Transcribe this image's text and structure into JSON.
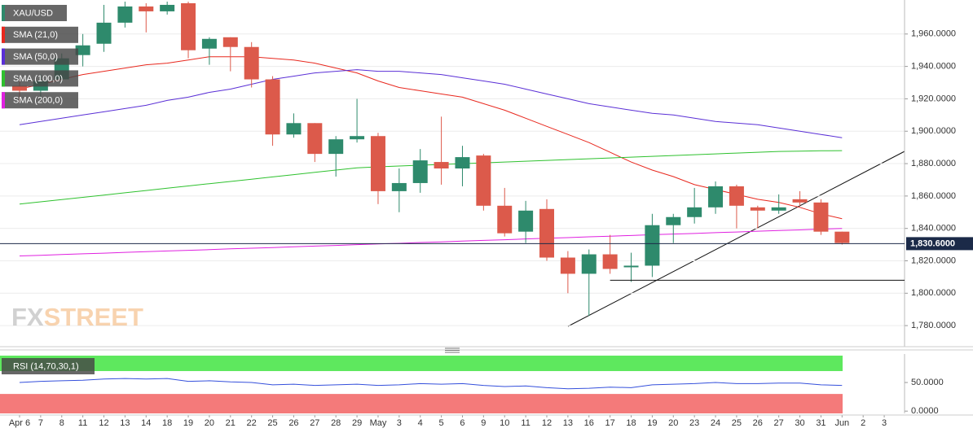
{
  "chart_data": [
    {
      "type": "candlestick",
      "categories": [
        "Apr 6",
        "7",
        "8",
        "11",
        "12",
        "13",
        "14",
        "18",
        "19",
        "20",
        "21",
        "22",
        "25",
        "26",
        "27",
        "28",
        "29",
        "May",
        "3",
        "4",
        "5",
        "6",
        "9",
        "10",
        "11",
        "12",
        "13",
        "16",
        "17",
        "18",
        "19",
        "20",
        "23",
        "24",
        "25",
        "26",
        "27",
        "30",
        "31",
        "Jun",
        "2",
        "3"
      ],
      "candles": {
        "name": "XAU/USD",
        "up_color": "#2e8a6c",
        "down_color": "#dc5a4b",
        "open": [
          1928,
          1925,
          1932,
          1947,
          1954,
          1967,
          1977,
          1974,
          1979,
          1951,
          1958,
          1952,
          1932,
          1898,
          1905,
          1886,
          1895,
          1897,
          1863,
          1868,
          1881,
          1877,
          1885,
          1854,
          1838,
          1852,
          1822,
          1812,
          1824,
          1816,
          1817,
          1842,
          1847,
          1853,
          1866,
          1853,
          1851,
          1858,
          1856,
          1838,
          null,
          null
        ],
        "high": [
          1932,
          1935,
          1948,
          1960,
          1978,
          1980,
          1979,
          1980,
          1980,
          1958,
          1958,
          1955,
          1934,
          1911,
          1905,
          1897,
          1920,
          1899,
          1877,
          1889,
          1909,
          1891,
          1886,
          1865,
          1857,
          1858,
          1826,
          1827,
          1836,
          1825,
          1849,
          1849,
          1865,
          1869,
          1867,
          1854,
          1861,
          1863,
          1858,
          1838,
          null,
          null
        ],
        "low": [
          1918,
          1920,
          1930,
          1940,
          1949,
          1964,
          1961,
          1972,
          1945,
          1941,
          1937,
          1927,
          1891,
          1896,
          1881,
          1872,
          1893,
          1855,
          1850,
          1862,
          1867,
          1866,
          1851,
          1835,
          1831,
          1820,
          1800,
          1786,
          1812,
          1807,
          1810,
          1831,
          1843,
          1849,
          1840,
          1840,
          1849,
          1854,
          1836,
          1830,
          null,
          null
        ],
        "close": [
          1925,
          1931,
          1945,
          1953,
          1967,
          1977,
          1974,
          1978,
          1950,
          1957,
          1952,
          1932,
          1898,
          1905,
          1886,
          1895,
          1897,
          1863,
          1868,
          1882,
          1877,
          1884,
          1854,
          1837,
          1851,
          1822,
          1812,
          1824,
          1815,
          1817,
          1842,
          1847,
          1853,
          1866,
          1854,
          1851,
          1853,
          1856,
          1838,
          1831,
          null,
          null
        ]
      },
      "series": [
        {
          "name": "SMA (21,0)",
          "color": "#e8281e",
          "values": [
            1926,
            1929,
            1932,
            1935,
            1937,
            1939,
            1941,
            1942,
            1944,
            1946,
            1946,
            1946,
            1945,
            1944,
            1942,
            1939,
            1936,
            1931,
            1927,
            1925,
            1923,
            1921,
            1917,
            1913,
            1908,
            1903,
            1898,
            1893,
            1887,
            1881,
            1876,
            1872,
            1867,
            1864,
            1861,
            1858,
            1856,
            1853,
            1849,
            1846,
            null,
            null
          ]
        },
        {
          "name": "SMA (50,0)",
          "color": "#5a2fd6",
          "values": [
            1904,
            1906,
            1908,
            1910,
            1912,
            1914,
            1916,
            1919,
            1921,
            1924,
            1926,
            1929,
            1932,
            1934,
            1936,
            1937,
            1938,
            1937,
            1937,
            1936,
            1935,
            1933,
            1931,
            1929,
            1926,
            1923,
            1920,
            1917,
            1915,
            1913,
            1911,
            1910,
            1908,
            1906,
            1905,
            1904,
            1902,
            1900,
            1898,
            1896,
            null,
            null
          ]
        },
        {
          "name": "SMA (100,0)",
          "color": "#2ec12e",
          "values": [
            1855,
            1856.4,
            1857.8,
            1859.2,
            1860.6,
            1862,
            1863.4,
            1864.8,
            1866.2,
            1867.6,
            1869,
            1870.4,
            1871.8,
            1873.2,
            1874.6,
            1876,
            1877.4,
            1878,
            1878.5,
            1879,
            1879.5,
            1880,
            1880.5,
            1881,
            1881.5,
            1882,
            1882.5,
            1883,
            1883.5,
            1884,
            1884.5,
            1885,
            1885.5,
            1886,
            1886.5,
            1887,
            1887.5,
            1887.7,
            1887.9,
            1888,
            null,
            null
          ]
        },
        {
          "name": "SMA (200,0)",
          "color": "#e020e0",
          "values": [
            1823.0,
            1823.4,
            1823.9,
            1824.3,
            1824.7,
            1825.2,
            1825.6,
            1826.1,
            1826.5,
            1826.9,
            1827.4,
            1827.8,
            1828.2,
            1828.7,
            1829.1,
            1829.5,
            1830.0,
            1830.4,
            1830.8,
            1831.3,
            1831.7,
            1832.2,
            1832.6,
            1833.0,
            1833.5,
            1833.9,
            1834.3,
            1834.8,
            1835.2,
            1835.6,
            1836.1,
            1836.5,
            1836.9,
            1837.4,
            1837.8,
            1838.3,
            1838.7,
            1839.1,
            1839.6,
            1840.0,
            null,
            null
          ]
        }
      ],
      "ylim": [
        1767,
        1981
      ],
      "yticks": [
        {
          "value": 1780,
          "label": "1,780.0000"
        },
        {
          "value": 1800,
          "label": "1,800.0000"
        },
        {
          "value": 1820,
          "label": "1,820.0000"
        },
        {
          "value": 1840,
          "label": "1,840.0000"
        },
        {
          "value": 1860,
          "label": "1,860.0000"
        },
        {
          "value": 1880,
          "label": "1,880.0000"
        },
        {
          "value": 1900,
          "label": "1,900.0000"
        },
        {
          "value": 1920,
          "label": "1,920.0000"
        },
        {
          "value": 1940,
          "label": "1,940.0000"
        },
        {
          "value": 1960,
          "label": "1,960.0000"
        }
      ],
      "last_price": {
        "value": 1830.6,
        "label": "1,830.6000"
      },
      "support_level": 1808,
      "grid": true,
      "watermark": {
        "left": "FX",
        "right": "STREET"
      }
    },
    {
      "type": "line",
      "title": "RSI (14,70,30,1)",
      "color": "#3550dc",
      "values": [
        50,
        52,
        53,
        54,
        56,
        57,
        56,
        57,
        52,
        53,
        51,
        50,
        46,
        47,
        45,
        46,
        47,
        45,
        46,
        48,
        47,
        48,
        45,
        43,
        44,
        41,
        39,
        40,
        42,
        41,
        46,
        47,
        48,
        50,
        48,
        48,
        49,
        49,
        46,
        45,
        null,
        null
      ],
      "overbought": 70,
      "oversold": 30,
      "overbought_color": "#5ee85e",
      "oversold_color": "#f47a7a",
      "ylim": [
        -4,
        97
      ],
      "yticks": [
        {
          "value": 0,
          "label": "0.0000"
        },
        {
          "value": 50,
          "label": "50.0000"
        }
      ]
    }
  ]
}
